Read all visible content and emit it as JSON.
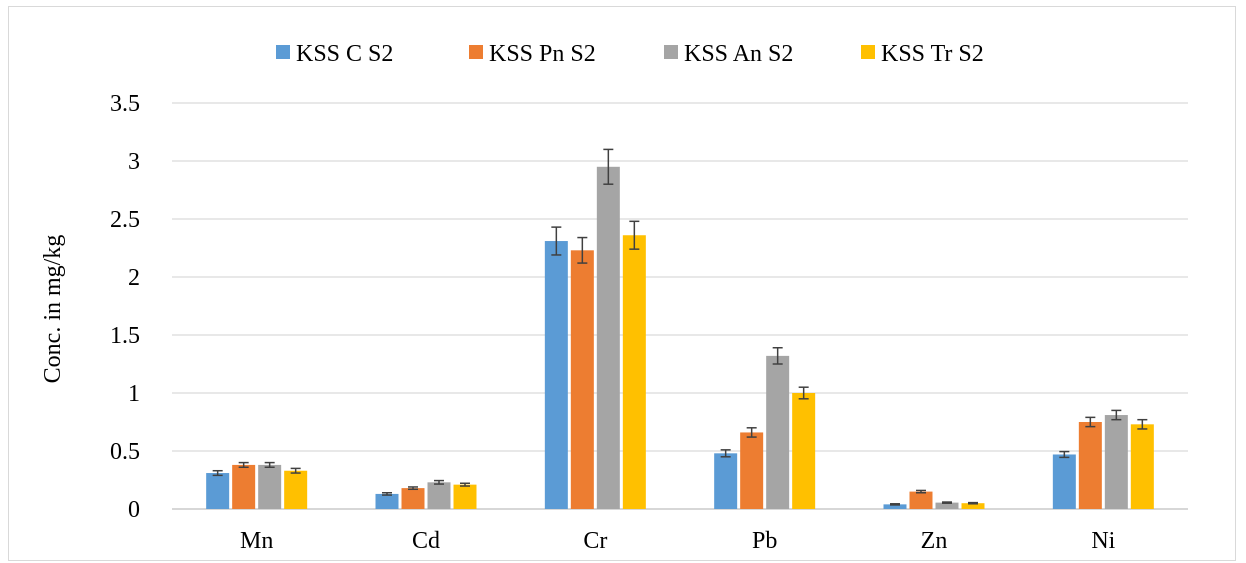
{
  "chart_data": {
    "type": "bar",
    "title": "",
    "xlabel": "",
    "ylabel": "Conc. in mg/kg",
    "ylim": [
      0,
      3.5
    ],
    "yticks": [
      "0",
      "0.5",
      "1",
      "1.5",
      "2",
      "2.5",
      "3",
      "3.5"
    ],
    "grid": true,
    "legend_position": "top",
    "categories": [
      "Mn",
      "Cd",
      "Cr",
      "Pb",
      "Zn",
      "Ni"
    ],
    "series": [
      {
        "name": "KSS C S2",
        "color": "#5b9bd5",
        "values": [
          0.31,
          0.13,
          2.31,
          0.48,
          0.04,
          0.47
        ],
        "errors": [
          0.02,
          0.01,
          0.12,
          0.03,
          0.005,
          0.025
        ]
      },
      {
        "name": "KSS Pn S2",
        "color": "#ed7d31",
        "values": [
          0.38,
          0.18,
          2.23,
          0.66,
          0.15,
          0.75
        ],
        "errors": [
          0.02,
          0.01,
          0.11,
          0.04,
          0.01,
          0.04
        ]
      },
      {
        "name": "KSS An S2",
        "color": "#a5a5a5",
        "values": [
          0.38,
          0.23,
          2.95,
          1.32,
          0.055,
          0.81
        ],
        "errors": [
          0.02,
          0.015,
          0.15,
          0.07,
          0.005,
          0.04
        ]
      },
      {
        "name": "KSS Tr S2",
        "color": "#ffc000",
        "values": [
          0.33,
          0.21,
          2.36,
          1.0,
          0.05,
          0.73
        ],
        "errors": [
          0.02,
          0.012,
          0.12,
          0.05,
          0.005,
          0.04
        ]
      }
    ]
  }
}
